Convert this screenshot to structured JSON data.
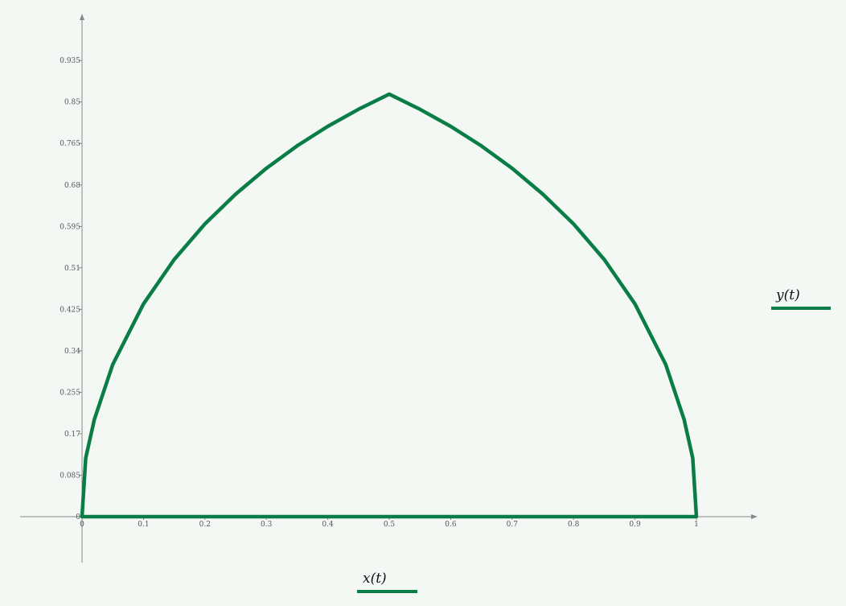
{
  "chart_data": {
    "type": "line",
    "series": [
      {
        "name": "y(t)",
        "x_name": "x(t)",
        "color": "#0a7d46",
        "points": [
          [
            0,
            0
          ],
          [
            0.006,
            0.12
          ],
          [
            0.02,
            0.199
          ],
          [
            0.05,
            0.312
          ],
          [
            0.1,
            0.436
          ],
          [
            0.15,
            0.527
          ],
          [
            0.2,
            0.6
          ],
          [
            0.25,
            0.661
          ],
          [
            0.3,
            0.714
          ],
          [
            0.35,
            0.76
          ],
          [
            0.4,
            0.8
          ],
          [
            0.45,
            0.835
          ],
          [
            0.5,
            0.866
          ],
          [
            0.55,
            0.835
          ],
          [
            0.6,
            0.8
          ],
          [
            0.65,
            0.76
          ],
          [
            0.7,
            0.714
          ],
          [
            0.75,
            0.661
          ],
          [
            0.8,
            0.6
          ],
          [
            0.85,
            0.527
          ],
          [
            0.9,
            0.436
          ],
          [
            0.95,
            0.312
          ],
          [
            0.98,
            0.199
          ],
          [
            0.994,
            0.12
          ],
          [
            1,
            0
          ],
          [
            0,
            0
          ]
        ]
      }
    ],
    "xlim": [
      0,
      1
    ],
    "ylim": [
      0,
      1.02
    ],
    "xticks": [
      "0",
      "0.1",
      "0.2",
      "0.3",
      "0.4",
      "0.5",
      "0.6",
      "0.7",
      "0.8",
      "0.9",
      "1"
    ],
    "yticks": [
      "0",
      "0.085",
      "0.17",
      "0.255",
      "0.34",
      "0.425",
      "0.51",
      "0.595",
      "0.68",
      "0.765",
      "0.85",
      "0.935"
    ],
    "xlabel": "x(t)",
    "ylabel": "y(t)",
    "grid": false,
    "legend": "right and bottom"
  }
}
